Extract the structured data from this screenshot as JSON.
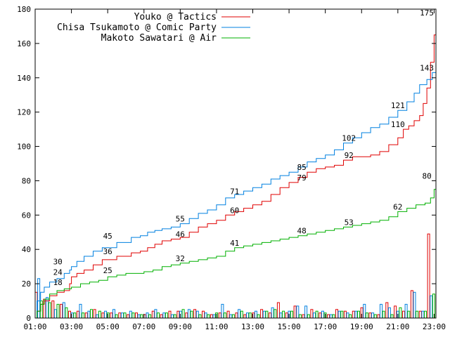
{
  "chart_data": {
    "type": "line",
    "title": "",
    "xlabel": "",
    "ylabel": "",
    "x_ticks": [
      "01:00",
      "03:00",
      "05:00",
      "07:00",
      "09:00",
      "11:00",
      "13:00",
      "15:00",
      "17:00",
      "19:00",
      "21:00",
      "23:00"
    ],
    "y_ticks": [
      0,
      20,
      40,
      60,
      80,
      100,
      120,
      140,
      160,
      180
    ],
    "xlim_hours": [
      1,
      23.1
    ],
    "ylim": [
      0,
      180
    ],
    "legend_position": "top-right",
    "series": [
      {
        "name": "Youko @ Tactics",
        "color": "#e00000",
        "cumulative": [
          [
            1,
            0
          ],
          [
            1.1,
            4
          ],
          [
            1.3,
            8
          ],
          [
            1.5,
            10
          ],
          [
            1.8,
            13
          ],
          [
            2.2,
            15
          ],
          [
            2.6,
            16
          ],
          [
            2.9,
            20
          ],
          [
            3.0,
            24
          ],
          [
            3.3,
            26
          ],
          [
            3.7,
            28
          ],
          [
            4.2,
            31
          ],
          [
            4.7,
            34
          ],
          [
            5.5,
            36
          ],
          [
            6.3,
            38
          ],
          [
            6.8,
            39
          ],
          [
            7.2,
            41
          ],
          [
            7.6,
            43
          ],
          [
            8.0,
            45
          ],
          [
            8.5,
            46
          ],
          [
            9.0,
            47
          ],
          [
            9.5,
            50
          ],
          [
            10.0,
            53
          ],
          [
            10.5,
            55
          ],
          [
            11.0,
            57
          ],
          [
            11.5,
            60
          ],
          [
            12.0,
            62
          ],
          [
            12.5,
            64
          ],
          [
            13.0,
            66
          ],
          [
            13.5,
            68
          ],
          [
            14.0,
            72
          ],
          [
            14.5,
            76
          ],
          [
            15.0,
            79
          ],
          [
            15.5,
            82
          ],
          [
            16.0,
            85
          ],
          [
            16.5,
            87
          ],
          [
            17.0,
            88
          ],
          [
            17.5,
            89
          ],
          [
            18.0,
            92
          ],
          [
            18.5,
            94
          ],
          [
            19.0,
            94
          ],
          [
            19.5,
            95
          ],
          [
            20.0,
            97
          ],
          [
            20.5,
            101
          ],
          [
            21.0,
            105
          ],
          [
            21.3,
            110
          ],
          [
            21.6,
            112
          ],
          [
            21.9,
            115
          ],
          [
            22.2,
            118
          ],
          [
            22.4,
            125
          ],
          [
            22.6,
            134
          ],
          [
            22.8,
            149
          ],
          [
            23.0,
            165
          ],
          [
            23.1,
            175
          ]
        ],
        "hourly": [
          15,
          11,
          10,
          8,
          4,
          4,
          3,
          5,
          3,
          3,
          3,
          2,
          3,
          2,
          4,
          2,
          4,
          4,
          3,
          5,
          4,
          2,
          3,
          4,
          3,
          2,
          3,
          5,
          3,
          9,
          3,
          7,
          2,
          5,
          3,
          2,
          5,
          4,
          4,
          6,
          3,
          2,
          9,
          7,
          4,
          16,
          4,
          49
        ]
      },
      {
        "name": "Chisa Tsukamoto @ Comic Party",
        "color": "#0080e0",
        "cumulative": [
          [
            1,
            0
          ],
          [
            1.1,
            10
          ],
          [
            1.3,
            15
          ],
          [
            1.5,
            18
          ],
          [
            1.8,
            21
          ],
          [
            2.2,
            23
          ],
          [
            2.6,
            26
          ],
          [
            2.9,
            28
          ],
          [
            3.0,
            30
          ],
          [
            3.3,
            33
          ],
          [
            3.7,
            36
          ],
          [
            4.2,
            39
          ],
          [
            4.7,
            41
          ],
          [
            5.5,
            44
          ],
          [
            6.3,
            47
          ],
          [
            6.8,
            48
          ],
          [
            7.2,
            50
          ],
          [
            7.6,
            51
          ],
          [
            8.0,
            52
          ],
          [
            8.5,
            53
          ],
          [
            9.0,
            55
          ],
          [
            9.5,
            58
          ],
          [
            10.0,
            61
          ],
          [
            10.5,
            63
          ],
          [
            11.0,
            66
          ],
          [
            11.5,
            70
          ],
          [
            12.0,
            72
          ],
          [
            12.5,
            74
          ],
          [
            13.0,
            76
          ],
          [
            13.5,
            78
          ],
          [
            14.0,
            81
          ],
          [
            14.5,
            83
          ],
          [
            15.0,
            85
          ],
          [
            15.5,
            88
          ],
          [
            16.0,
            91
          ],
          [
            16.5,
            93
          ],
          [
            17.0,
            95
          ],
          [
            17.5,
            98
          ],
          [
            18.0,
            102
          ],
          [
            18.5,
            105
          ],
          [
            19.0,
            108
          ],
          [
            19.5,
            111
          ],
          [
            20.0,
            113
          ],
          [
            20.5,
            117
          ],
          [
            21.0,
            121
          ],
          [
            21.5,
            126
          ],
          [
            21.9,
            131
          ],
          [
            22.2,
            136
          ],
          [
            22.6,
            139
          ],
          [
            22.9,
            143
          ],
          [
            23.1,
            149
          ]
        ],
        "hourly": [
          23,
          12,
          5,
          9,
          3,
          8,
          4,
          2,
          4,
          5,
          3,
          4,
          2,
          3,
          5,
          3,
          2,
          4,
          5,
          4,
          3,
          2,
          8,
          2,
          5,
          3,
          4,
          4,
          6,
          3,
          4,
          7,
          7,
          3,
          4,
          2,
          4,
          3,
          4,
          8,
          3,
          8,
          6,
          4,
          8,
          15,
          4,
          13
        ]
      },
      {
        "name": "Makoto Sawatari @ Air",
        "color": "#00b000",
        "cumulative": [
          [
            1,
            0
          ],
          [
            1.1,
            4
          ],
          [
            1.3,
            8
          ],
          [
            1.5,
            11
          ],
          [
            1.8,
            14
          ],
          [
            2.2,
            16
          ],
          [
            2.6,
            17
          ],
          [
            3.0,
            18
          ],
          [
            3.5,
            20
          ],
          [
            4.0,
            21
          ],
          [
            4.5,
            22
          ],
          [
            5.0,
            24
          ],
          [
            5.5,
            25
          ],
          [
            6.0,
            26
          ],
          [
            7.0,
            27
          ],
          [
            7.5,
            28
          ],
          [
            8.0,
            30
          ],
          [
            8.5,
            31
          ],
          [
            9.0,
            32
          ],
          [
            9.5,
            33
          ],
          [
            10.0,
            34
          ],
          [
            10.5,
            35
          ],
          [
            11.0,
            36
          ],
          [
            11.5,
            39
          ],
          [
            12.0,
            41
          ],
          [
            12.5,
            42
          ],
          [
            13.0,
            43
          ],
          [
            13.5,
            44
          ],
          [
            14.0,
            45
          ],
          [
            14.5,
            46
          ],
          [
            15.0,
            47
          ],
          [
            15.5,
            48
          ],
          [
            16.0,
            49
          ],
          [
            16.5,
            50
          ],
          [
            17.0,
            51
          ],
          [
            17.5,
            52
          ],
          [
            18.0,
            53
          ],
          [
            18.5,
            54
          ],
          [
            19.0,
            55
          ],
          [
            19.5,
            56
          ],
          [
            20.0,
            57
          ],
          [
            20.5,
            59
          ],
          [
            21.0,
            62
          ],
          [
            21.5,
            64
          ],
          [
            22.0,
            66
          ],
          [
            22.5,
            67
          ],
          [
            22.8,
            70
          ],
          [
            23.0,
            75
          ],
          [
            23.1,
            80
          ]
        ],
        "hourly": [
          10,
          9,
          8,
          6,
          3,
          3,
          5,
          4,
          3,
          2,
          3,
          3,
          2,
          2,
          3,
          3,
          2,
          5,
          4,
          2,
          2,
          3,
          3,
          2,
          4,
          3,
          2,
          4,
          5,
          4,
          4,
          2,
          2,
          4,
          3,
          2,
          4,
          2,
          4,
          3,
          2,
          4,
          2,
          6,
          4,
          4,
          4,
          14
        ]
      }
    ],
    "data_labels": [
      {
        "x": 2.25,
        "y": 30,
        "text": "30"
      },
      {
        "x": 2.25,
        "y": 24,
        "text": "24"
      },
      {
        "x": 2.25,
        "y": 18,
        "text": "18"
      },
      {
        "x": 5.0,
        "y": 45,
        "text": "45"
      },
      {
        "x": 5.0,
        "y": 36,
        "text": "36"
      },
      {
        "x": 5.0,
        "y": 25,
        "text": "25"
      },
      {
        "x": 9.0,
        "y": 55,
        "text": "55"
      },
      {
        "x": 9.0,
        "y": 46,
        "text": "46"
      },
      {
        "x": 9.0,
        "y": 32,
        "text": "32"
      },
      {
        "x": 12.0,
        "y": 71,
        "text": "71"
      },
      {
        "x": 12.0,
        "y": 60,
        "text": "60"
      },
      {
        "x": 12.0,
        "y": 41,
        "text": "41"
      },
      {
        "x": 15.7,
        "y": 85,
        "text": "85"
      },
      {
        "x": 15.7,
        "y": 79,
        "text": "79"
      },
      {
        "x": 15.7,
        "y": 48,
        "text": "48"
      },
      {
        "x": 18.3,
        "y": 102,
        "text": "102"
      },
      {
        "x": 18.3,
        "y": 92,
        "text": "92"
      },
      {
        "x": 18.3,
        "y": 53,
        "text": "53"
      },
      {
        "x": 21.0,
        "y": 121,
        "text": "121"
      },
      {
        "x": 21.0,
        "y": 110,
        "text": "110"
      },
      {
        "x": 21.0,
        "y": 62,
        "text": "62"
      },
      {
        "x": 22.6,
        "y": 175,
        "text": "175"
      },
      {
        "x": 22.6,
        "y": 143,
        "text": "143"
      },
      {
        "x": 22.6,
        "y": 80,
        "text": "80"
      }
    ]
  }
}
